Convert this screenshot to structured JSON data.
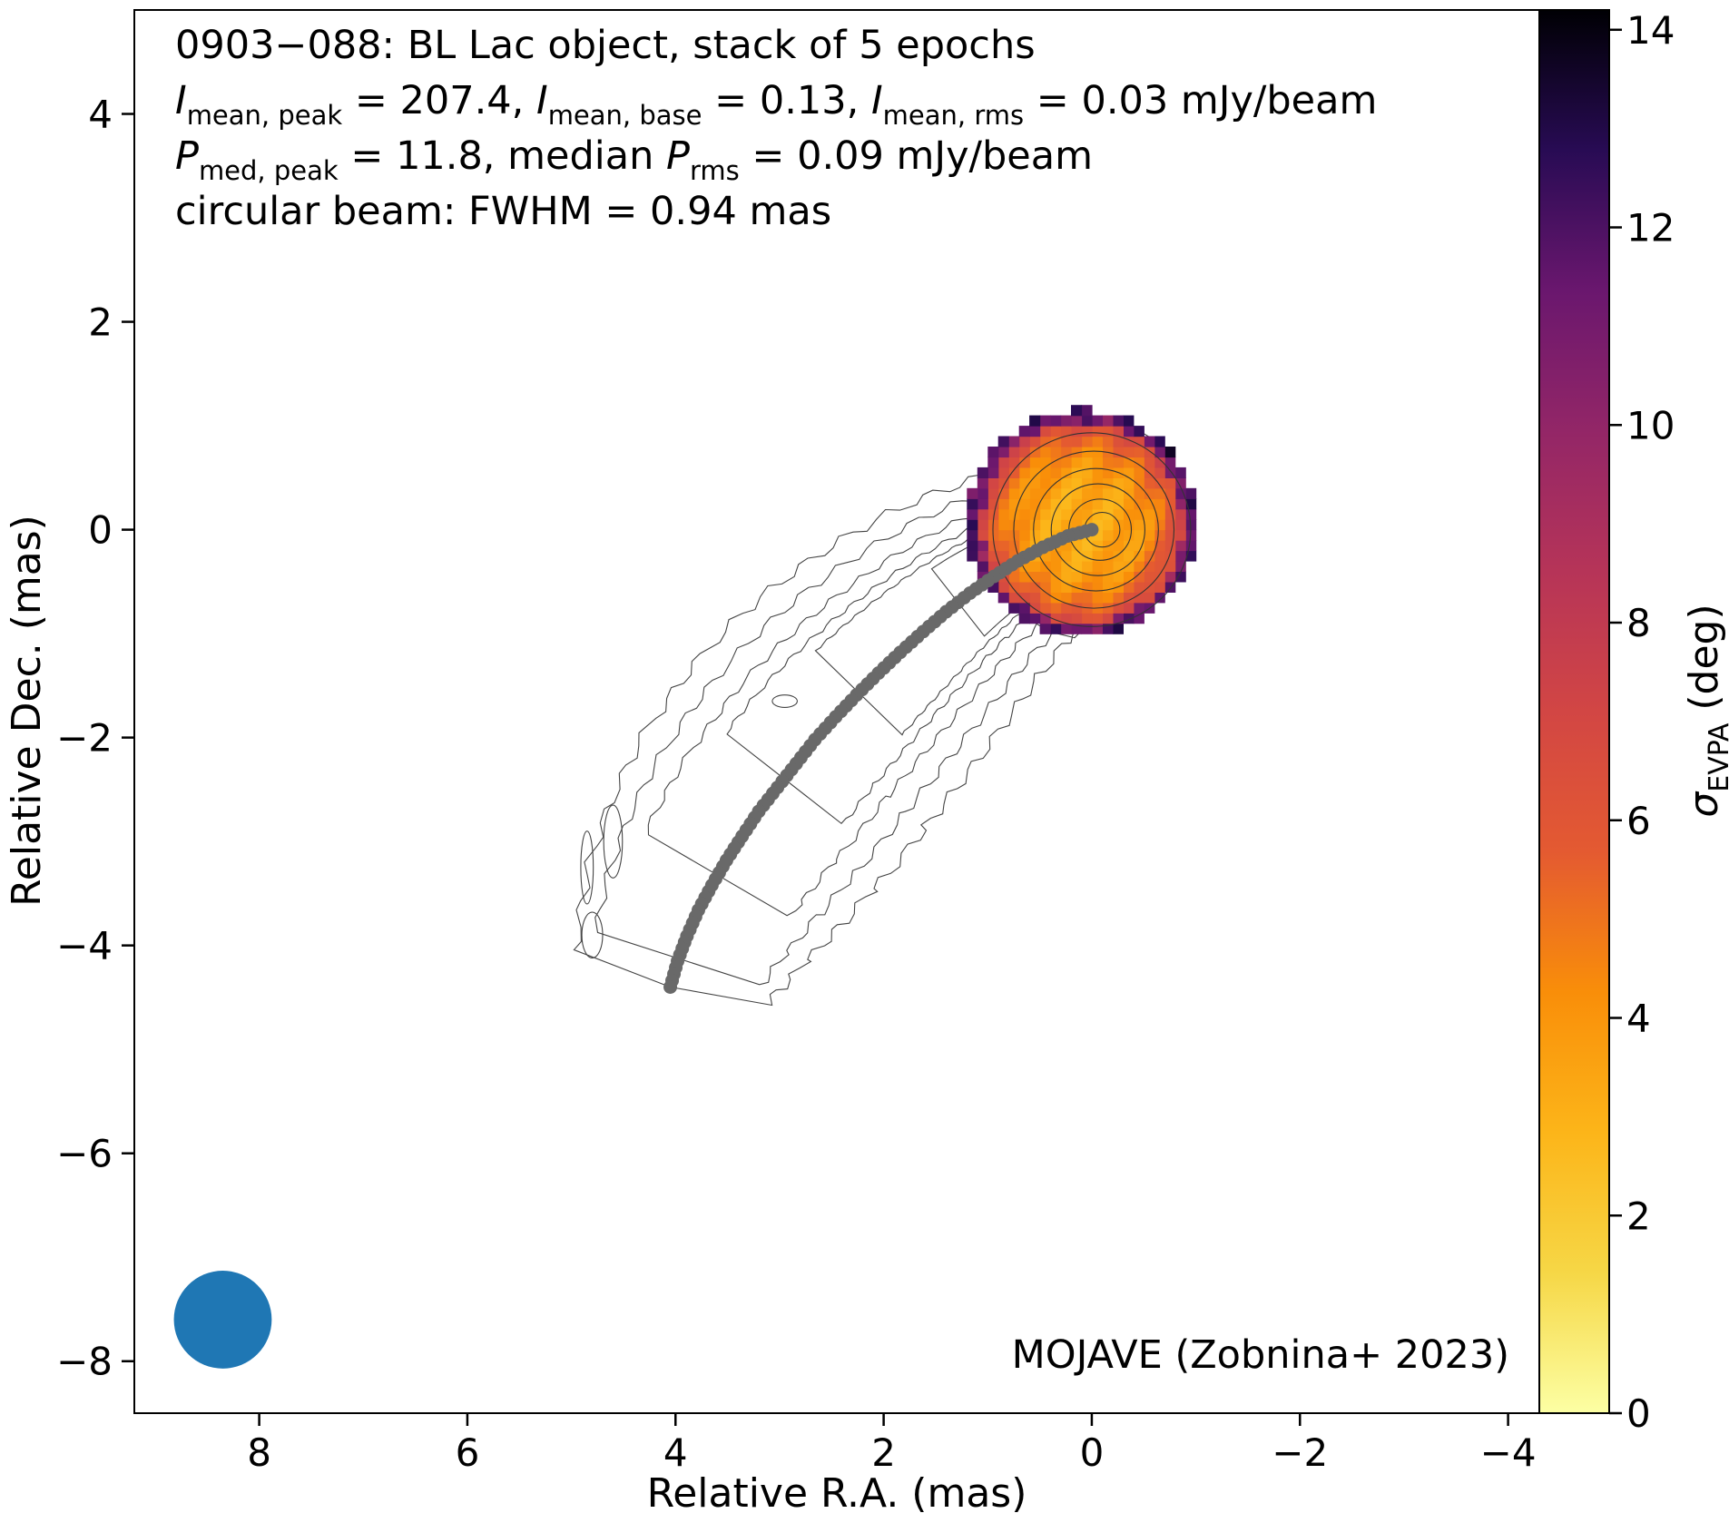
{
  "chart_data": {
    "type": "heatmap",
    "header_lines": [
      [
        {
          "t": "0903−088: BL Lac object, stack of 5 epochs"
        }
      ],
      [
        {
          "t": "I",
          "i": 1
        },
        {
          "t": "mean, peak",
          "s": 1
        },
        {
          "t": " = 207.4, "
        },
        {
          "t": "I",
          "i": 1
        },
        {
          "t": "mean, base",
          "s": 1
        },
        {
          "t": " = 0.13, "
        },
        {
          "t": "I",
          "i": 1
        },
        {
          "t": "mean, rms",
          "s": 1
        },
        {
          "t": " = 0.03 mJy/beam"
        }
      ],
      [
        {
          "t": "P",
          "i": 1
        },
        {
          "t": "med, peak",
          "s": 1
        },
        {
          "t": " = 11.8, median "
        },
        {
          "t": "P",
          "i": 1
        },
        {
          "t": "rms",
          "s": 1
        },
        {
          "t": " = 0.09 mJy/beam"
        }
      ],
      [
        {
          "t": "circular beam: FWHM = 0.94 mas"
        }
      ]
    ],
    "annotation": "MOJAVE (Zobnina+ 2023)",
    "xlabel": "Relative R.A. (mas)",
    "ylabel": "Relative Dec. (mas)",
    "colorbar_label": {
      "symbol": "σ",
      "sub": "EVPA",
      "unit": " (deg)"
    },
    "xlim": [
      9.2,
      -4.3
    ],
    "ylim": [
      -8.5,
      5.0
    ],
    "xticks": [
      8,
      6,
      4,
      2,
      0,
      -2,
      -4
    ],
    "yticks": [
      4,
      2,
      0,
      -2,
      -4,
      -6,
      -8
    ],
    "colorbar_ticks": [
      0,
      2,
      4,
      6,
      8,
      10,
      12,
      14
    ],
    "colorbar_range": [
      0,
      14.2
    ],
    "colormap": "inferno_r",
    "beam": {
      "x": 8.35,
      "y": -7.6,
      "fwhm_mas": 0.94,
      "color": "#1f77b4"
    },
    "contour_levels": [
      0.1,
      0.2,
      0.4,
      0.8,
      1.6,
      3.2,
      6.4,
      12.8,
      25.6,
      51.2,
      102.4
    ],
    "jet_ridgeline": {
      "color": "#696969",
      "points": [
        [
          0,
          0
        ],
        [
          0.23,
          -0.06
        ],
        [
          0.47,
          -0.17
        ],
        [
          0.71,
          -0.3
        ],
        [
          0.94,
          -0.45
        ],
        [
          1.17,
          -0.61
        ],
        [
          1.4,
          -0.79
        ],
        [
          1.62,
          -0.98
        ],
        [
          1.84,
          -1.18
        ],
        [
          2.05,
          -1.38
        ],
        [
          2.26,
          -1.59
        ],
        [
          2.46,
          -1.8
        ],
        [
          2.66,
          -2.02
        ],
        [
          2.84,
          -2.25
        ],
        [
          3.02,
          -2.48
        ],
        [
          3.2,
          -2.71
        ],
        [
          3.36,
          -2.95
        ],
        [
          3.51,
          -3.18
        ],
        [
          3.65,
          -3.42
        ],
        [
          3.78,
          -3.66
        ],
        [
          3.89,
          -3.91
        ],
        [
          3.98,
          -4.15
        ],
        [
          4.05,
          -4.4
        ]
      ]
    },
    "evpa_sigma_map": {
      "center": [
        0.1,
        0.06
      ],
      "radius_mas": 1.1,
      "core_sigma_deg": 3.2,
      "edge_sigma_deg": 9.0
    }
  }
}
